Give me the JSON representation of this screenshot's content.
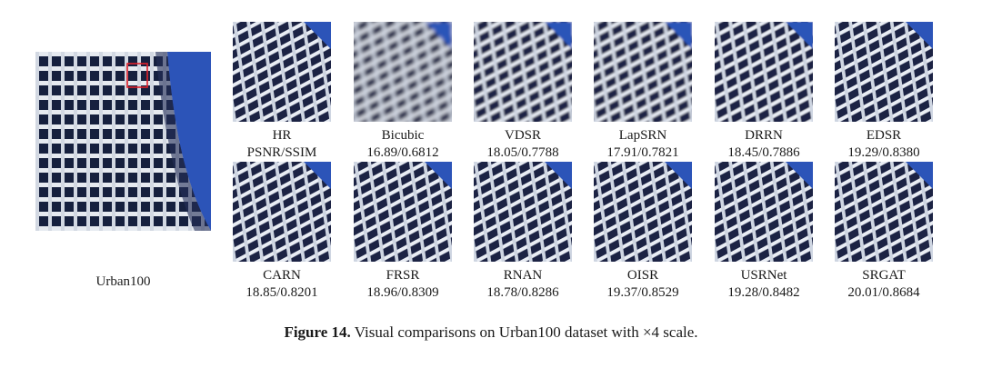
{
  "figure": {
    "caption_label": "Figure 14.",
    "caption_text": "Visual comparisons on Urban100 dataset with ×4 scale.",
    "main_label": "Urban100"
  },
  "rows": [
    [
      {
        "name": "HR",
        "score": "PSNR/SSIM"
      },
      {
        "name": "Bicubic",
        "score": "16.89/0.6812"
      },
      {
        "name": "VDSR",
        "score": "18.05/0.7788"
      },
      {
        "name": "LapSRN",
        "score": "17.91/0.7821"
      },
      {
        "name": "DRRN",
        "score": "18.45/0.7886"
      },
      {
        "name": "EDSR",
        "score": "19.29/0.8380"
      }
    ],
    [
      {
        "name": "CARN",
        "score": "18.85/0.8201"
      },
      {
        "name": "FRSR",
        "score": "18.96/0.8309"
      },
      {
        "name": "RNAN",
        "score": "18.78/0.8286"
      },
      {
        "name": "OISR",
        "score": "19.37/0.8529"
      },
      {
        "name": "USRNet",
        "score": "19.28/0.8482"
      },
      {
        "name": "SRGAT",
        "score": "20.01/0.8684"
      }
    ]
  ],
  "colors": {
    "sky": "#2c54b8",
    "frame": "#e8ecf2",
    "window": "#1a2140",
    "highlight_box": "#e0202a"
  }
}
